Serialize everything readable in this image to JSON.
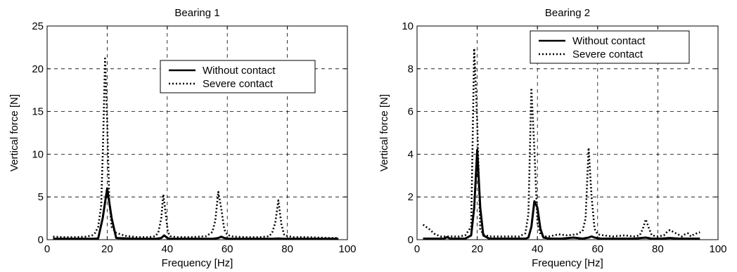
{
  "chart_data": [
    {
      "type": "line",
      "title": "Bearing 1",
      "xlabel": "Frequency [Hz]",
      "ylabel": "Vertical force [N]",
      "xlim": [
        0,
        100
      ],
      "ylim": [
        0,
        25
      ],
      "xticks": [
        0,
        20,
        40,
        60,
        80,
        100
      ],
      "yticks": [
        0,
        5,
        10,
        15,
        20,
        25
      ],
      "grid": true,
      "legend_position": "upper-center",
      "series": [
        {
          "name": "Without contact",
          "style": "solid",
          "color": "#000000",
          "x": [
            2,
            5,
            10,
            15,
            17,
            18.5,
            20,
            21.5,
            23,
            30,
            36,
            38,
            39,
            40,
            41,
            43,
            50,
            55,
            57,
            58,
            59,
            61,
            65,
            70,
            75,
            77,
            79,
            85,
            90,
            97
          ],
          "y": [
            0.1,
            0.1,
            0.1,
            0.1,
            0.15,
            2.5,
            6.0,
            2.5,
            0.2,
            0.1,
            0.1,
            0.2,
            0.5,
            0.2,
            0.1,
            0.1,
            0.1,
            0.1,
            0.2,
            0.35,
            0.2,
            0.1,
            0.1,
            0.1,
            0.1,
            0.15,
            0.1,
            0.1,
            0.1,
            0.1
          ]
        },
        {
          "name": "Severe contact",
          "style": "dotted",
          "color": "#000000",
          "x": [
            2,
            5,
            10,
            13,
            15,
            16,
            17,
            18,
            18.7,
            19.3,
            20,
            20.7,
            21.5,
            23,
            26,
            30,
            34,
            36,
            37,
            38,
            38.7,
            39.5,
            40.2,
            41,
            43,
            48,
            53,
            55,
            56,
            57,
            58,
            59,
            60,
            62,
            66,
            71,
            74,
            75,
            76,
            77,
            78,
            79,
            82,
            86,
            90,
            95,
            97
          ],
          "y": [
            0.35,
            0.3,
            0.3,
            0.35,
            0.5,
            0.8,
            1.5,
            4.0,
            12.0,
            21.2,
            14.0,
            4.5,
            1.5,
            0.8,
            0.45,
            0.3,
            0.3,
            0.4,
            0.8,
            2.5,
            5.3,
            3.0,
            0.9,
            0.4,
            0.3,
            0.3,
            0.4,
            0.9,
            2.2,
            5.6,
            3.6,
            1.2,
            0.55,
            0.35,
            0.3,
            0.3,
            0.4,
            0.9,
            2.0,
            4.6,
            1.8,
            0.5,
            0.3,
            0.3,
            0.25,
            0.2,
            0.2
          ]
        }
      ]
    },
    {
      "type": "line",
      "title": "Bearing 2",
      "xlabel": "Frequency [Hz]",
      "ylabel": "Vertical force [N]",
      "xlim": [
        0,
        100
      ],
      "ylim": [
        0,
        10
      ],
      "xticks": [
        0,
        20,
        40,
        60,
        80,
        100
      ],
      "yticks": [
        0,
        2,
        4,
        6,
        8,
        10
      ],
      "grid": true,
      "legend_position": "top-right",
      "series": [
        {
          "name": "Without contact",
          "style": "solid",
          "color": "#000000",
          "x": [
            2,
            5,
            9,
            10,
            11,
            13,
            16,
            18,
            19,
            20,
            21,
            22,
            24,
            28,
            33,
            36,
            37,
            38,
            39,
            40,
            41,
            42,
            44,
            48,
            52,
            55,
            57,
            58,
            59,
            61,
            66,
            72,
            76,
            78,
            81,
            84,
            87,
            90,
            94
          ],
          "y": [
            0.05,
            0.05,
            0.05,
            0.12,
            0.05,
            0.05,
            0.05,
            0.2,
            1.5,
            4.2,
            1.5,
            0.2,
            0.05,
            0.05,
            0.05,
            0.05,
            0.1,
            0.6,
            1.8,
            1.5,
            0.5,
            0.1,
            0.05,
            0.05,
            0.1,
            0.05,
            0.1,
            0.15,
            0.1,
            0.05,
            0.05,
            0.05,
            0.1,
            0.05,
            0.05,
            0.08,
            0.05,
            0.05,
            0.05
          ]
        },
        {
          "name": "Severe contact",
          "style": "dotted",
          "color": "#000000",
          "x": [
            2,
            4,
            6,
            8,
            10,
            12,
            14,
            16,
            18,
            19,
            20,
            21,
            22,
            24,
            27,
            31,
            34,
            36,
            37,
            38,
            39,
            40,
            41,
            42,
            44,
            47,
            50,
            53,
            55,
            56,
            57,
            58,
            59,
            60,
            62,
            65,
            69,
            72,
            74,
            75,
            76,
            77,
            78,
            80,
            82,
            83,
            84,
            86,
            88,
            89,
            90,
            91,
            92,
            94
          ],
          "y": [
            0.7,
            0.5,
            0.25,
            0.15,
            0.15,
            0.15,
            0.15,
            0.2,
            0.6,
            8.95,
            5.5,
            0.5,
            0.25,
            0.15,
            0.15,
            0.15,
            0.15,
            0.3,
            1.2,
            7.1,
            4.2,
            0.8,
            0.25,
            0.15,
            0.15,
            0.25,
            0.2,
            0.25,
            0.4,
            1.0,
            4.3,
            2.0,
            0.5,
            0.25,
            0.2,
            0.15,
            0.2,
            0.15,
            0.2,
            0.5,
            0.95,
            0.55,
            0.2,
            0.15,
            0.2,
            0.35,
            0.45,
            0.3,
            0.15,
            0.25,
            0.3,
            0.15,
            0.25,
            0.35
          ]
        }
      ]
    }
  ]
}
